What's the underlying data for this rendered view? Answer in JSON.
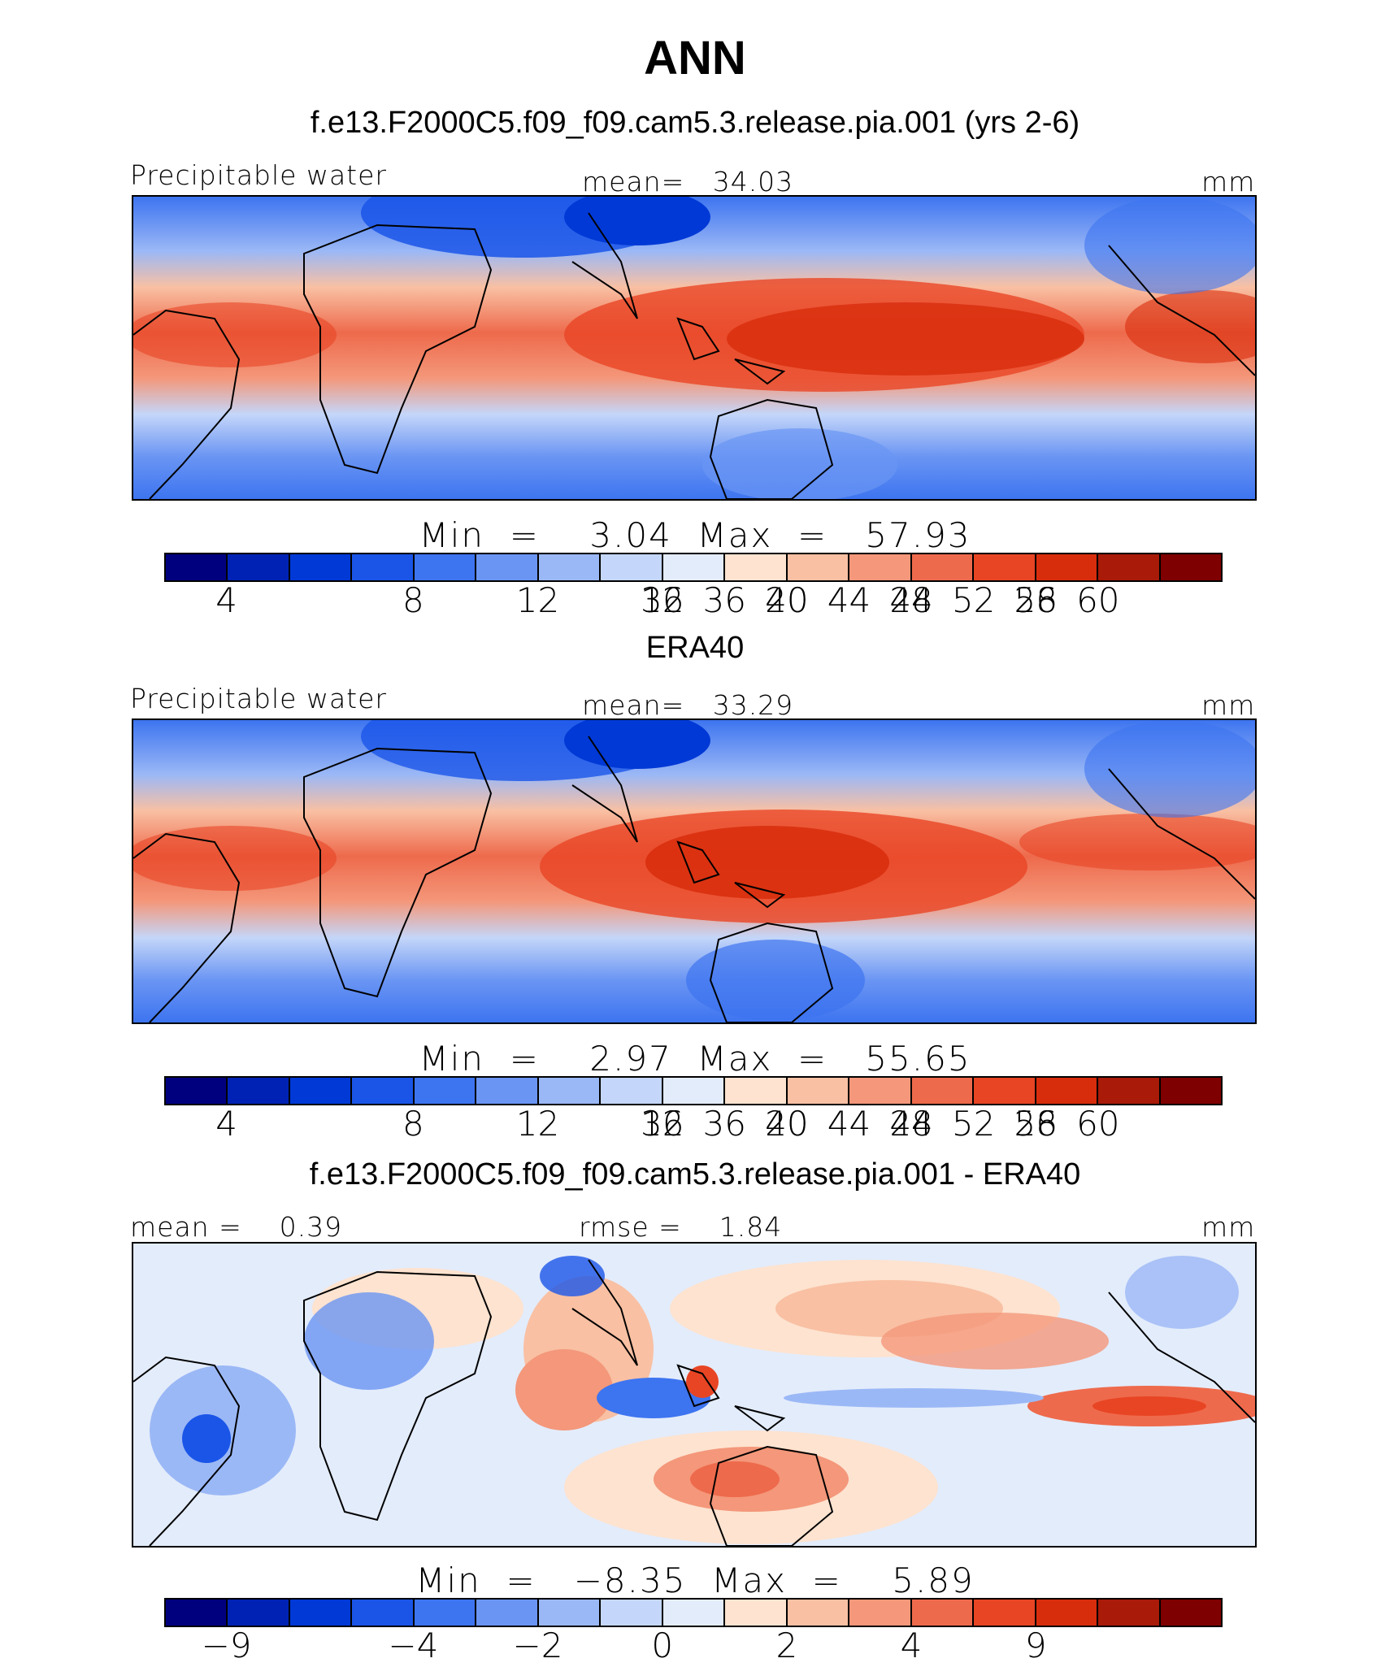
{
  "chart_data": [
    {
      "type": "heatmap",
      "title": "ANN",
      "subtitle": "f.e13.F2000C5.f09_f09.cam5.3.release.pia.001 (yrs 2-6)",
      "left_label": "Precipitable water",
      "center_label": "mean=   34.03",
      "units": "mm",
      "min_max": "Min  =    3.04  Max  =   57.93",
      "min": 3.04,
      "max": 57.93,
      "mean": 34.03,
      "colorbar_ticks": [
        "4",
        "8",
        "12",
        "16",
        "20",
        "24",
        "28",
        "32",
        "36",
        "40",
        "44",
        "48",
        "52",
        "56",
        "60"
      ],
      "colorbar_colors": [
        "#00007f",
        "#0022b4",
        "#0039d6",
        "#1a55e8",
        "#3d74f0",
        "#6a95f3",
        "#9bb8f6",
        "#c4d6f9",
        "#e3ecfb",
        "#fde3d0",
        "#f9c0a3",
        "#f4977a",
        "#ee6a4c",
        "#e84524",
        "#d82d0c",
        "#a91a09",
        "#7f0000"
      ],
      "lat_range": [
        -40,
        40
      ],
      "lon_range": [
        -90,
        270
      ]
    },
    {
      "type": "heatmap",
      "subtitle": "ERA40",
      "left_label": "Precipitable water",
      "center_label": "mean=   33.29",
      "units": "mm",
      "min_max": "Min  =    2.97  Max  =   55.65",
      "min": 2.97,
      "max": 55.65,
      "mean": 33.29,
      "colorbar_ticks": [
        "4",
        "8",
        "12",
        "16",
        "20",
        "24",
        "28",
        "32",
        "36",
        "40",
        "44",
        "48",
        "52",
        "56",
        "60"
      ],
      "colorbar_colors": [
        "#00007f",
        "#0022b4",
        "#0039d6",
        "#1a55e8",
        "#3d74f0",
        "#6a95f3",
        "#9bb8f6",
        "#c4d6f9",
        "#e3ecfb",
        "#fde3d0",
        "#f9c0a3",
        "#f4977a",
        "#ee6a4c",
        "#e84524",
        "#d82d0c",
        "#a91a09",
        "#7f0000"
      ],
      "lat_range": [
        -40,
        40
      ],
      "lon_range": [
        -90,
        270
      ]
    },
    {
      "type": "heatmap",
      "subtitle": "f.e13.F2000C5.f09_f09.cam5.3.release.pia.001 - ERA40",
      "left_label": "mean =    0.39",
      "center_label": "rmse =    1.84",
      "units": "mm",
      "min_max": "Min  =   −8.35  Max  =    5.89",
      "min": -8.35,
      "max": 5.89,
      "mean": 0.39,
      "rmse": 1.84,
      "colorbar_ticks": [
        "−9",
        "−4",
        "−2",
        "0",
        "2",
        "4",
        "9"
      ],
      "colorbar_colors": [
        "#00007f",
        "#0022b4",
        "#0039d6",
        "#1a55e8",
        "#3d74f0",
        "#6a95f3",
        "#9bb8f6",
        "#c4d6f9",
        "#e3ecfb",
        "#fde3d0",
        "#f9c0a3",
        "#f4977a",
        "#ee6a4c",
        "#e84524",
        "#d82d0c",
        "#a91a09",
        "#7f0000"
      ],
      "lat_range": [
        -40,
        40
      ],
      "lon_range": [
        -90,
        270
      ]
    }
  ]
}
